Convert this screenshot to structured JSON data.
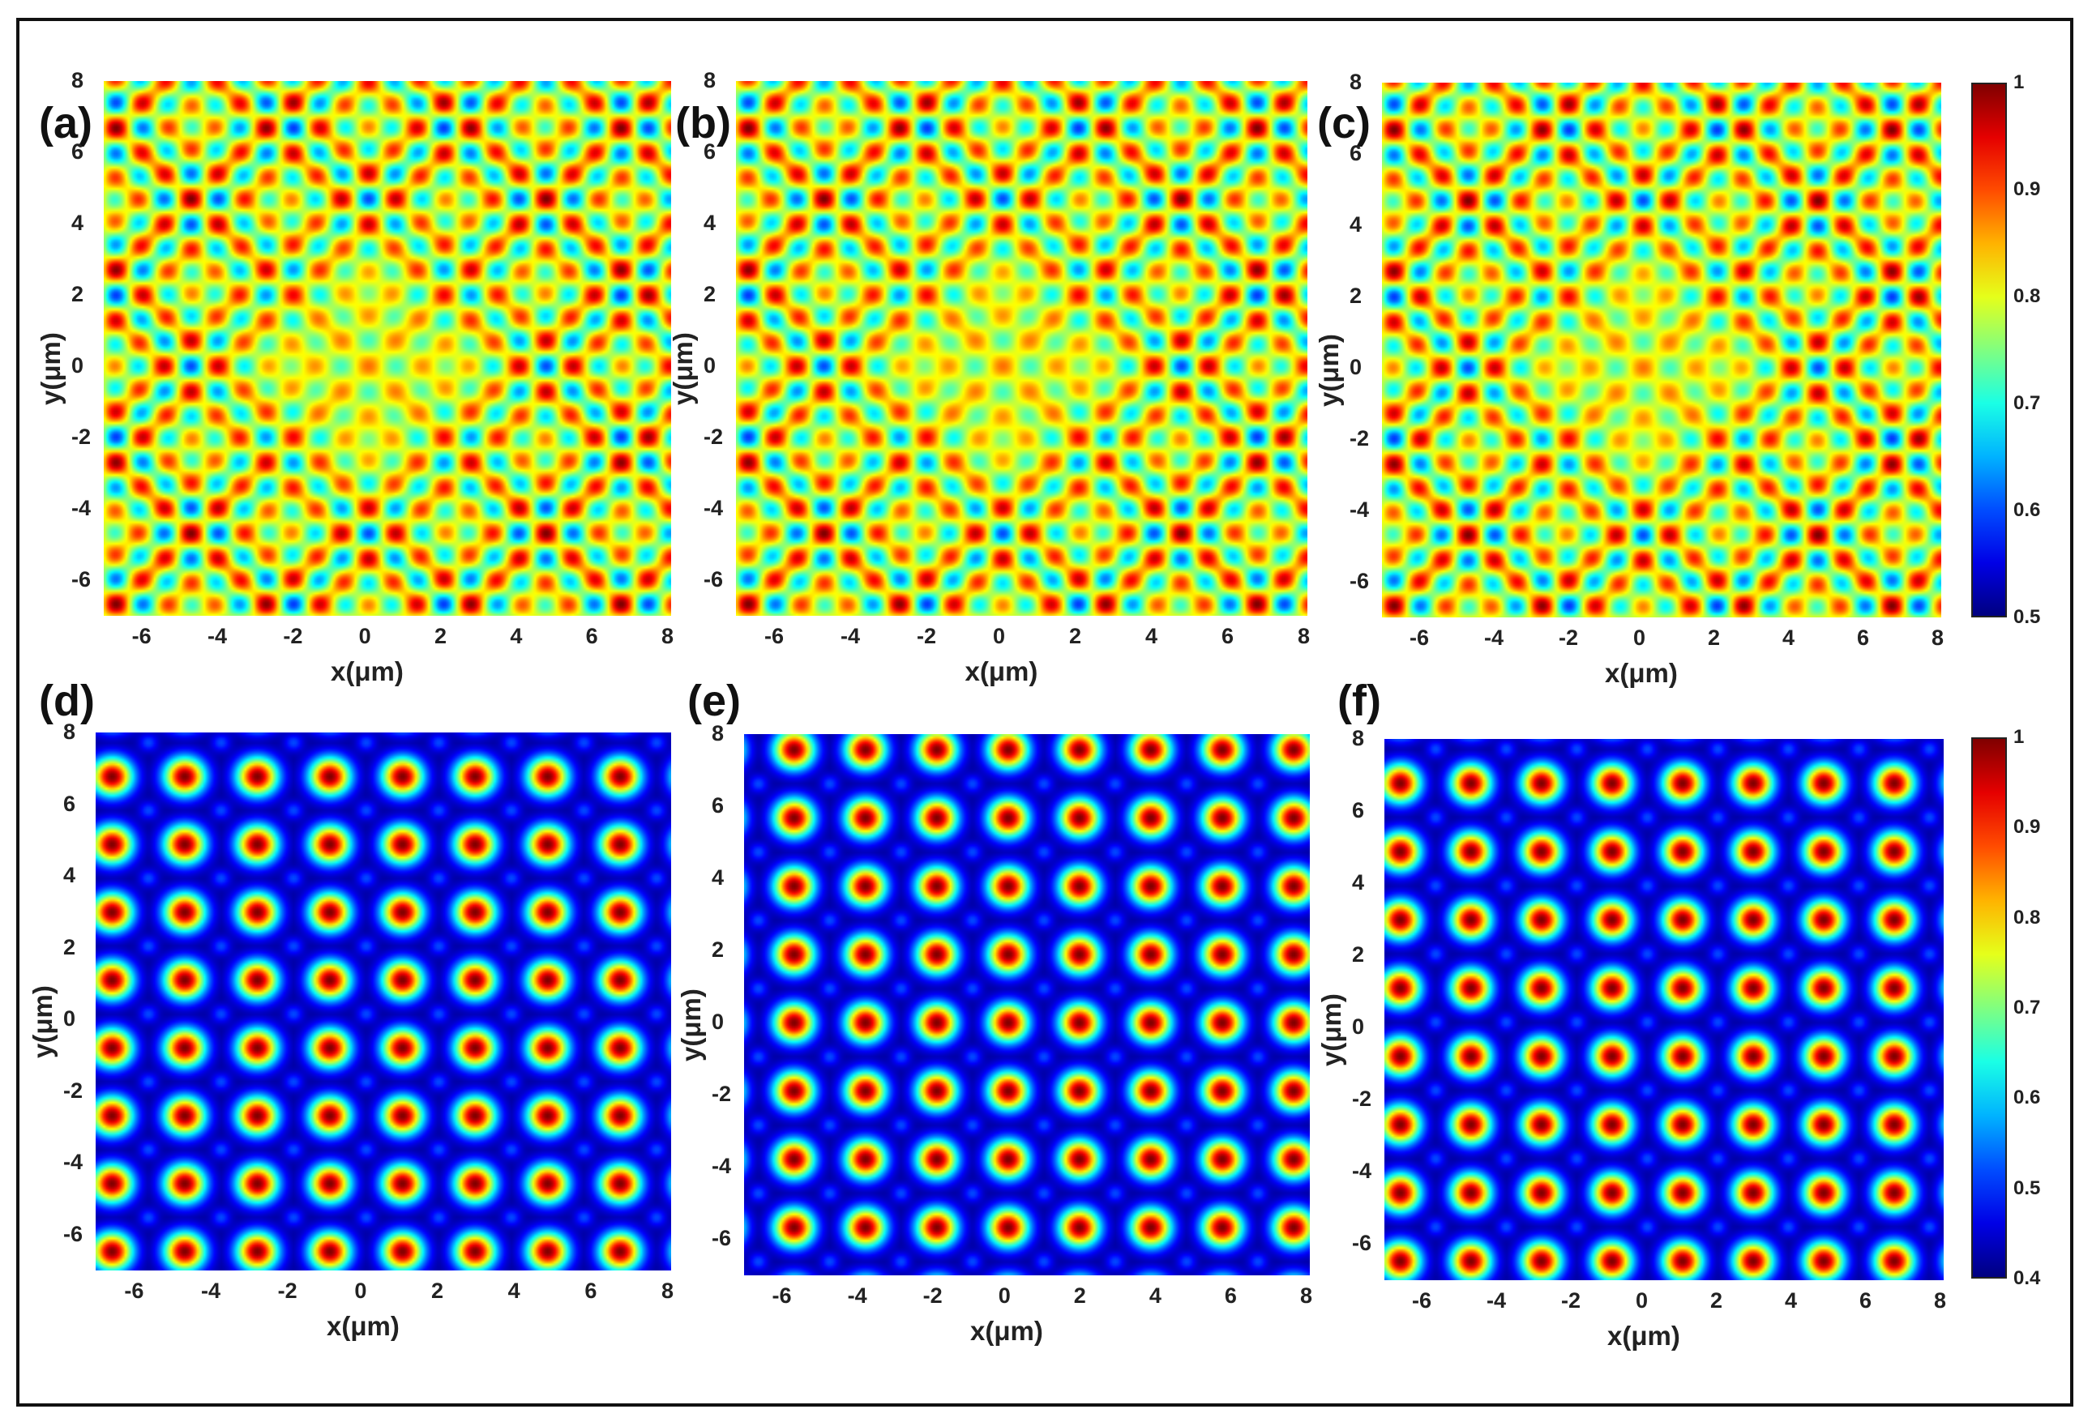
{
  "colormap": "jet",
  "chart_data": [
    {
      "type": "heatmap",
      "panel_label": "(a)",
      "xlabel": "x(μm)",
      "ylabel": "y(μm)",
      "xlim": [
        -7,
        8
      ],
      "ylim": [
        -7,
        8
      ],
      "xticks": [
        -6,
        -4,
        -2,
        0,
        2,
        4,
        6,
        8
      ],
      "yticks": [
        -6,
        -4,
        -2,
        0,
        2,
        4,
        6,
        8
      ],
      "color_range": [
        0.5,
        1
      ],
      "pattern": "four-beam interference lattice with diagonal X-shaped high-intensity bands and a low-contrast center",
      "grid": false,
      "colorbar": false
    },
    {
      "type": "heatmap",
      "panel_label": "(b)",
      "xlabel": "x(μm)",
      "ylabel": "y(μm)",
      "xlim": [
        -7,
        8
      ],
      "ylim": [
        -7,
        8
      ],
      "xticks": [
        -6,
        -4,
        -2,
        0,
        2,
        4,
        6,
        8
      ],
      "yticks": [
        -6,
        -4,
        -2,
        0,
        2,
        4,
        6,
        8
      ],
      "color_range": [
        0.5,
        1
      ],
      "pattern": "four-beam interference lattice with diagonal X-shaped high-intensity bands",
      "grid": false,
      "colorbar": false
    },
    {
      "type": "heatmap",
      "panel_label": "(c)",
      "xlabel": "x(μm)",
      "ylabel": "y(μm)",
      "xlim": [
        -7,
        8
      ],
      "ylim": [
        -7,
        8
      ],
      "xticks": [
        -6,
        -4,
        -2,
        0,
        2,
        4,
        6,
        8
      ],
      "yticks": [
        -6,
        -4,
        -2,
        0,
        2,
        4,
        6,
        8
      ],
      "color_range": [
        0.5,
        1
      ],
      "pattern": "four-beam interference lattice with diagonal X-shaped high-intensity bands",
      "grid": false,
      "colorbar": true,
      "colorbar_ticks": [
        "0.5",
        "0.6",
        "0.7",
        "0.8",
        "0.9",
        "1"
      ]
    },
    {
      "type": "heatmap",
      "panel_label": "(d)",
      "xlabel": "x(μm)",
      "ylabel": "y(μm)",
      "xlim": [
        -7,
        8
      ],
      "ylim": [
        -7,
        8
      ],
      "xticks": [
        -6,
        -4,
        -2,
        0,
        2,
        4,
        6,
        8
      ],
      "yticks": [
        -6,
        -4,
        -2,
        0,
        2,
        4,
        6,
        8
      ],
      "color_range": [
        0.4,
        1
      ],
      "lattice_period": 1.9,
      "lattice_first_x": -6.6,
      "lattice_first_y": -6.5,
      "pattern": "square lattice of bright spots",
      "grid": false,
      "colorbar": false
    },
    {
      "type": "heatmap",
      "panel_label": "(e)",
      "xlabel": "x(μm)",
      "ylabel": "y(μm)",
      "xlim": [
        -7,
        8
      ],
      "ylim": [
        -7,
        8
      ],
      "xticks": [
        -6,
        -4,
        -2,
        0,
        2,
        4,
        6,
        8
      ],
      "yticks": [
        -6,
        -4,
        -2,
        0,
        2,
        4,
        6,
        8
      ],
      "color_range": [
        0.4,
        1
      ],
      "lattice_period": 1.9,
      "lattice_first_x": -5.7,
      "lattice_first_y": -5.7,
      "pattern": "square lattice of bright spots",
      "grid": false,
      "colorbar": false
    },
    {
      "type": "heatmap",
      "panel_label": "(f)",
      "xlabel": "x(μm)",
      "ylabel": "y(μm)",
      "xlim": [
        -7,
        8
      ],
      "ylim": [
        -7,
        8
      ],
      "xticks": [
        -6,
        -4,
        -2,
        0,
        2,
        4,
        6,
        8
      ],
      "yticks": [
        -6,
        -4,
        -2,
        0,
        2,
        4,
        6,
        8
      ],
      "color_range": [
        0.4,
        1
      ],
      "lattice_period": 1.9,
      "lattice_first_x": -6.6,
      "lattice_first_y": -6.5,
      "pattern": "square lattice of bright spots",
      "grid": false,
      "colorbar": true,
      "colorbar_ticks": [
        "0.4",
        "0.5",
        "0.6",
        "0.7",
        "0.8",
        "0.9",
        "1"
      ]
    }
  ]
}
